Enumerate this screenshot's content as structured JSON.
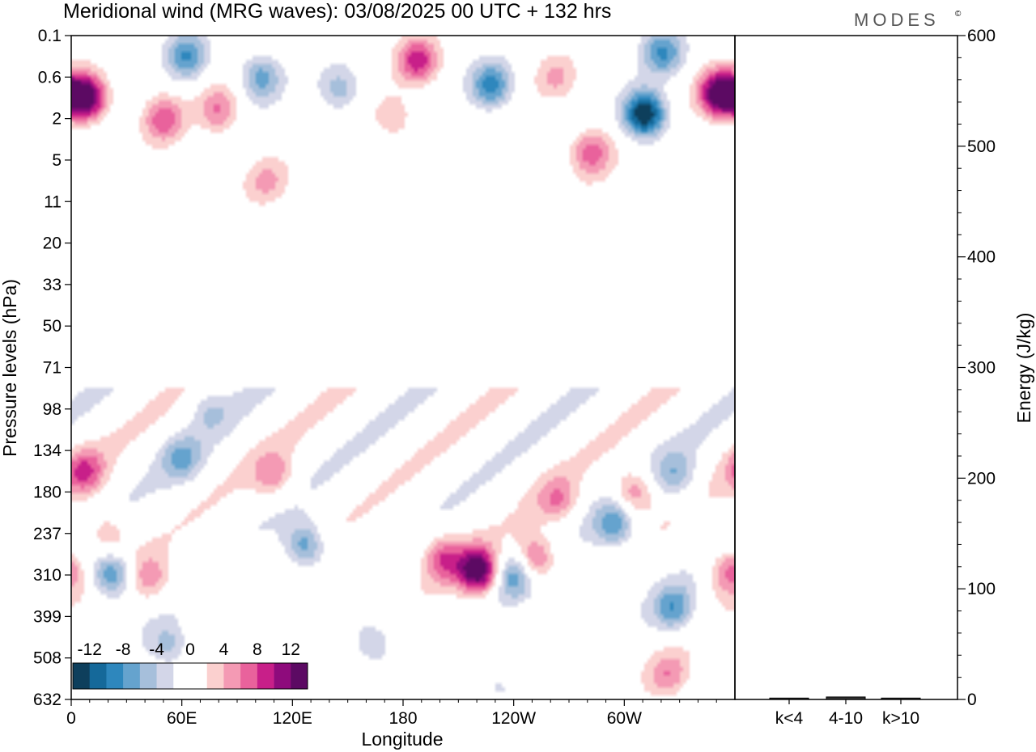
{
  "header": {
    "title": "Meridional wind (MRG waves):  03/08/2025  00 UTC  + 132 hrs",
    "logo": "MODES",
    "logo_mark": "©"
  },
  "colors": {
    "palette": [
      "#0e3f5c",
      "#15699a",
      "#2e87bd",
      "#65a3ce",
      "#a6bfdb",
      "#d3d6e8",
      "#ffffff",
      "#ffffff",
      "#fbd0cf",
      "#f49ab4",
      "#e9629c",
      "#c81f89",
      "#8e0b7c",
      "#5c0a63"
    ],
    "frame": "#000000"
  },
  "chart_data": [
    {
      "type": "heatmap",
      "title": "Meridional wind (MRG waves):  03/08/2025  00 UTC  + 132 hrs",
      "xlabel": "Longitude",
      "ylabel": "Pressure levels (hPa)",
      "x_ticks": [
        "0",
        "60E",
        "120E",
        "180",
        "120W",
        "60W"
      ],
      "x_tick_values": [
        0,
        60,
        120,
        180,
        240,
        300
      ],
      "xlim": [
        0,
        360
      ],
      "y_ticks": [
        "0.1",
        "0.6",
        "2",
        "5",
        "11",
        "20",
        "33",
        "50",
        "71",
        "98",
        "134",
        "180",
        "237",
        "310",
        "399",
        "508",
        "632"
      ],
      "colorbar": {
        "levels": [
          -14,
          -12,
          -10,
          -8,
          -6,
          -4,
          -2,
          0,
          2,
          4,
          6,
          8,
          10,
          12,
          14
        ],
        "labels": [
          "-12",
          "-8",
          "-4",
          "0",
          "4",
          "8",
          "12"
        ],
        "label_values": [
          -12,
          -8,
          -4,
          0,
          4,
          8,
          12
        ]
      },
      "features": [
        {
          "lon": 8,
          "level": 1.5,
          "value": 15
        },
        {
          "lon": 352,
          "level": 1.4,
          "value": 15
        },
        {
          "lon": 311,
          "level": 1.9,
          "value": -15
        },
        {
          "lon": 63,
          "level": 0.5,
          "value": -8
        },
        {
          "lon": 103,
          "level": 1.0,
          "value": -7
        },
        {
          "lon": 146,
          "level": 1.3,
          "value": -5
        },
        {
          "lon": 228,
          "level": 1.2,
          "value": -9
        },
        {
          "lon": 321,
          "level": 0.4,
          "value": -8
        },
        {
          "lon": 188,
          "level": 0.6,
          "value": 9
        },
        {
          "lon": 50,
          "level": 2.0,
          "value": 7
        },
        {
          "lon": 80,
          "level": 1.8,
          "value": 6
        },
        {
          "lon": 282,
          "level": 2.8,
          "value": 7
        },
        {
          "lon": 263,
          "level": 1.0,
          "value": 4
        },
        {
          "lon": 175,
          "level": 2.0,
          "value": 4
        },
        {
          "lon": 106,
          "level": 3.5,
          "value": 4
        },
        {
          "lon": 75,
          "level": 9.0,
          "value": -3
        },
        {
          "lon": 60,
          "level": 10.2,
          "value": -5
        },
        {
          "lon": 110,
          "level": 10.6,
          "value": 5
        },
        {
          "lon": 264,
          "level": 11.2,
          "value": 5
        },
        {
          "lon": 295,
          "level": 11.8,
          "value": -7
        },
        {
          "lon": 305,
          "level": 11.0,
          "value": 7
        },
        {
          "lon": 328,
          "level": 10.6,
          "value": -5
        },
        {
          "lon": 7,
          "level": 10.5,
          "value": 7
        },
        {
          "lon": 19,
          "level": 12.0,
          "value": 5
        },
        {
          "lon": 127,
          "level": 12.3,
          "value": -8
        },
        {
          "lon": 22,
          "level": 13.0,
          "value": -9
        },
        {
          "lon": 43,
          "level": 13.1,
          "value": 5
        },
        {
          "lon": 202,
          "level": 12.6,
          "value": 7
        },
        {
          "lon": 221,
          "level": 12.9,
          "value": 14
        },
        {
          "lon": 240,
          "level": 13.0,
          "value": -7
        },
        {
          "lon": 252,
          "level": 12.6,
          "value": 8
        },
        {
          "lon": 327,
          "level": 13.8,
          "value": -7
        },
        {
          "lon": 357,
          "level": 12.9,
          "value": 7
        },
        {
          "lon": 53,
          "level": 14.7,
          "value": -5
        },
        {
          "lon": 163,
          "level": 14.6,
          "value": -5
        },
        {
          "lon": 324,
          "level": 15.4,
          "value": 5
        },
        {
          "lon": 231,
          "level": 15.6,
          "value": -3
        }
      ]
    },
    {
      "type": "bar",
      "ylabel": "Energy (J/kg)",
      "categories": [
        "k<4",
        "4-10",
        "k>10"
      ],
      "values": [
        0.5,
        1.5,
        0.5
      ],
      "ylim": [
        0,
        600
      ],
      "y_ticks": [
        0,
        100,
        200,
        300,
        400,
        500,
        600
      ]
    }
  ]
}
